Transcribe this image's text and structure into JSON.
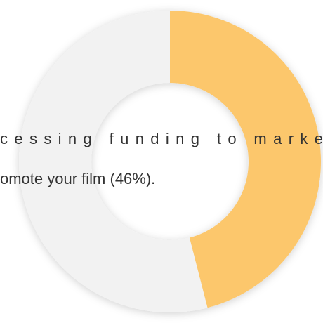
{
  "chart_data": {
    "type": "pie",
    "values": [
      46,
      54
    ],
    "colors": [
      "#fcc76c",
      "#f2f2f2"
    ],
    "annotation_lines": [
      "cessing funding to marke",
      "omote your film (46%)."
    ]
  }
}
